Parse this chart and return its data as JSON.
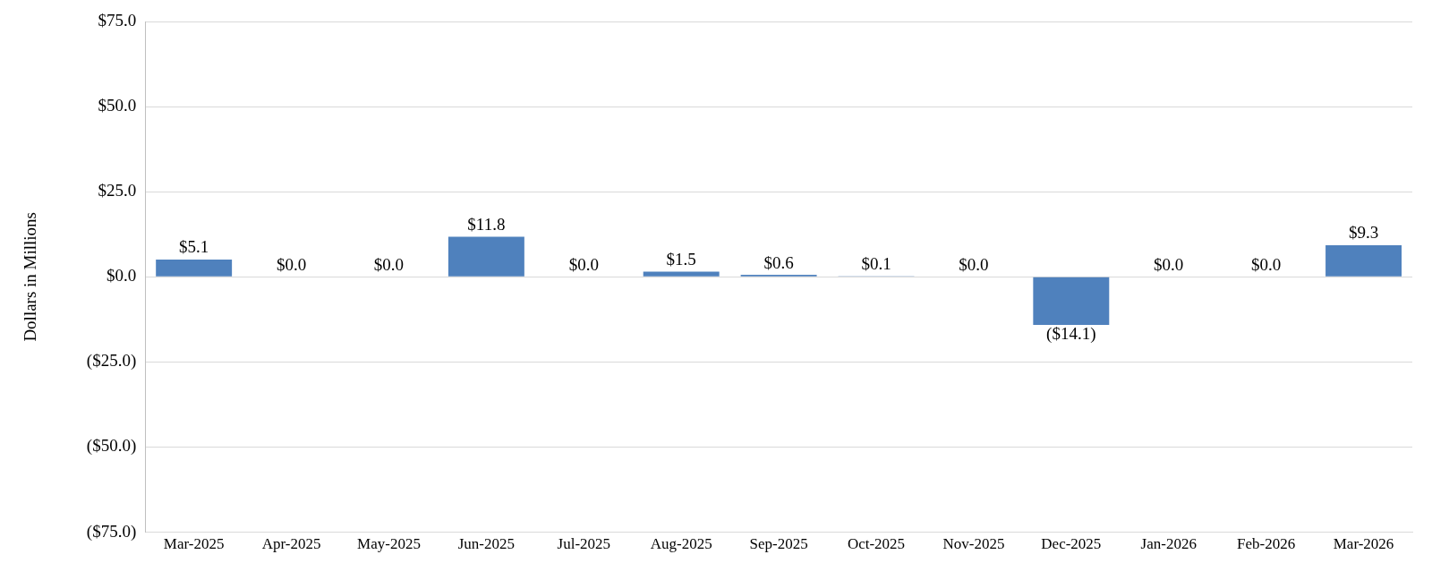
{
  "chart_data": {
    "type": "bar",
    "ylabel": "Dollars in Millions",
    "categories": [
      "Mar-2025",
      "Apr-2025",
      "May-2025",
      "Jun-2025",
      "Jul-2025",
      "Aug-2025",
      "Sep-2025",
      "Oct-2025",
      "Nov-2025",
      "Dec-2025",
      "Jan-2026",
      "Feb-2026",
      "Mar-2026"
    ],
    "values": [
      5.1,
      0,
      0,
      11.8,
      0,
      1.5,
      0.6,
      0.1,
      0,
      -14.1,
      0,
      0,
      9.3
    ],
    "value_labels": [
      "$5.1",
      "$0.0",
      "$0.0",
      "$11.8",
      "$0.0",
      "$1.5",
      "$0.6",
      "$0.1",
      "$0.0",
      "($14.1)",
      "$0.0",
      "$0.0",
      "$9.3"
    ],
    "color": "#4f81bd",
    "ylim": [
      -75,
      75
    ],
    "yticks": [
      {
        "value": -75,
        "label": "($75.0)"
      },
      {
        "value": -50,
        "label": "($50.0)"
      },
      {
        "value": -25,
        "label": "($25.0)"
      },
      {
        "value": 0,
        "label": "$0.0"
      },
      {
        "value": 25,
        "label": "$25.0"
      },
      {
        "value": 50,
        "label": "$50.0"
      },
      {
        "value": 75,
        "label": "$75.0"
      }
    ],
    "grid": "y"
  }
}
